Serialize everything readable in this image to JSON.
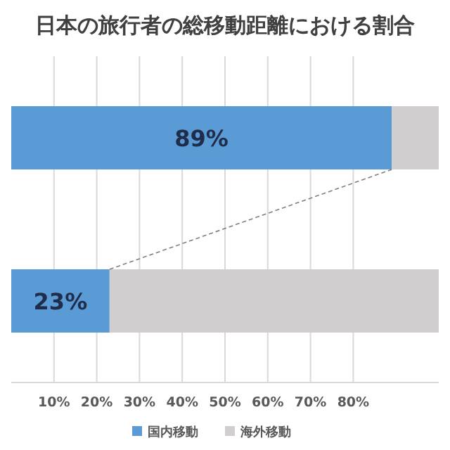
{
  "chart_data": {
    "type": "bar",
    "orientation": "horizontal",
    "stacked": true,
    "title": "日本の旅行者の総移動距離における割合",
    "categories": [
      null,
      null
    ],
    "series": [
      {
        "name": "国内移動",
        "color": "#5b9bd5",
        "values": [
          89,
          23
        ],
        "value_labels": [
          "89%",
          "23%"
        ]
      },
      {
        "name": "海外移動",
        "color": "#d0cece",
        "values": [
          11,
          77
        ]
      }
    ],
    "xlim": [
      0,
      100
    ],
    "xticks": [
      {
        "value": 10,
        "label": "10%"
      },
      {
        "value": 20,
        "label": "20%"
      },
      {
        "value": 30,
        "label": "30%"
      },
      {
        "value": 40,
        "label": "40%"
      },
      {
        "value": 50,
        "label": "50%"
      },
      {
        "value": 60,
        "label": "60%"
      },
      {
        "value": 70,
        "label": "70%"
      },
      {
        "value": 80,
        "label": "80%"
      }
    ],
    "grid": "x",
    "legend": "bottom"
  }
}
